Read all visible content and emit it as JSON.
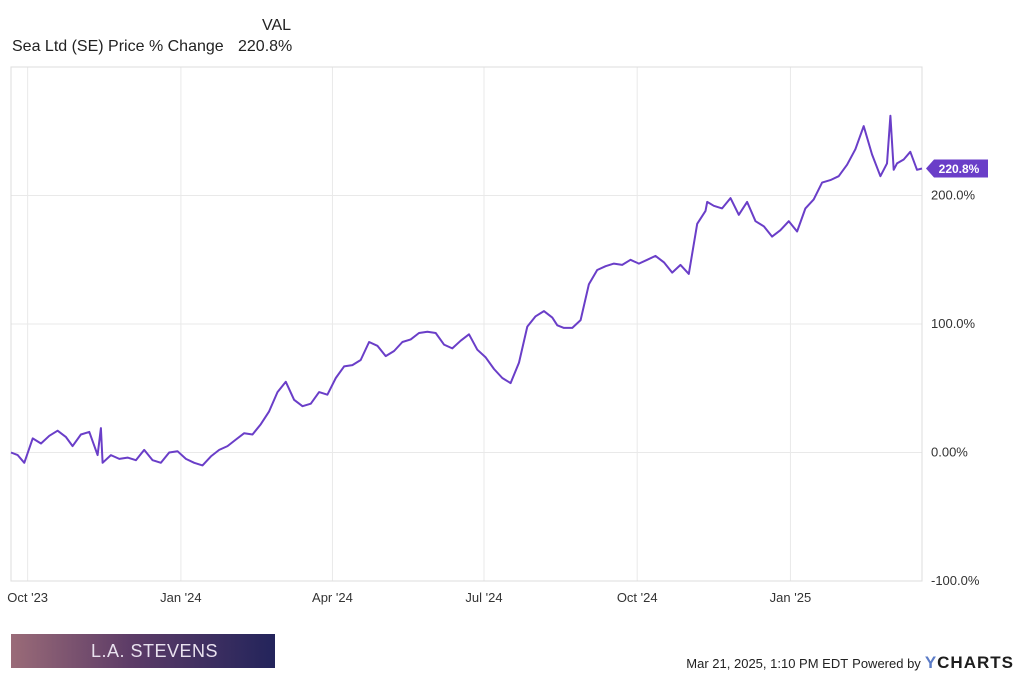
{
  "legend": {
    "header": "VAL",
    "series_label": "Sea Ltd (SE) Price % Change",
    "series_value": "220.8%"
  },
  "branding": {
    "text": "L.A. STEVENS"
  },
  "footer": {
    "timestamp": "Mar 21, 2025, 1:10 PM EDT",
    "powered_by": "Powered by",
    "logo_y": "Y",
    "logo_rest": "CHARTS"
  },
  "colors": {
    "line": "#6a3ec8",
    "grid": "#e9e9e9",
    "axis": "#cccccc"
  },
  "chart_data": {
    "type": "line",
    "series": [
      {
        "name": "Sea Ltd (SE) Price % Change",
        "x": [
          "2023-09-21",
          "2023-09-25",
          "2023-09-29",
          "2023-10-04",
          "2023-10-09",
          "2023-10-14",
          "2023-10-19",
          "2023-10-24",
          "2023-10-28",
          "2023-11-02",
          "2023-11-07",
          "2023-11-12",
          "2023-11-14",
          "2023-11-15",
          "2023-11-20",
          "2023-11-25",
          "2023-11-30",
          "2023-12-05",
          "2023-12-10",
          "2023-12-15",
          "2023-12-20",
          "2023-12-25",
          "2023-12-30",
          "2024-01-04",
          "2024-01-09",
          "2024-01-14",
          "2024-01-19",
          "2024-01-24",
          "2024-01-29",
          "2024-02-03",
          "2024-02-08",
          "2024-02-13",
          "2024-02-18",
          "2024-02-23",
          "2024-02-28",
          "2024-03-04",
          "2024-03-09",
          "2024-03-14",
          "2024-03-19",
          "2024-03-24",
          "2024-03-29",
          "2024-04-03",
          "2024-04-08",
          "2024-04-13",
          "2024-04-18",
          "2024-04-23",
          "2024-04-28",
          "2024-05-03",
          "2024-05-08",
          "2024-05-13",
          "2024-05-18",
          "2024-05-23",
          "2024-05-28",
          "2024-06-02",
          "2024-06-07",
          "2024-06-12",
          "2024-06-17",
          "2024-06-22",
          "2024-06-27",
          "2024-07-02",
          "2024-07-07",
          "2024-07-12",
          "2024-07-17",
          "2024-07-22",
          "2024-07-27",
          "2024-08-01",
          "2024-08-06",
          "2024-08-11",
          "2024-08-14",
          "2024-08-18",
          "2024-08-23",
          "2024-08-28",
          "2024-09-02",
          "2024-09-07",
          "2024-09-12",
          "2024-09-17",
          "2024-09-22",
          "2024-09-27",
          "2024-10-02",
          "2024-10-07",
          "2024-10-12",
          "2024-10-17",
          "2024-10-22",
          "2024-10-27",
          "2024-11-01",
          "2024-11-06",
          "2024-11-11",
          "2024-11-12",
          "2024-11-16",
          "2024-11-21",
          "2024-11-26",
          "2024-12-01",
          "2024-12-06",
          "2024-12-11",
          "2024-12-16",
          "2024-12-21",
          "2024-12-26",
          "2024-12-31",
          "2025-01-05",
          "2025-01-10",
          "2025-01-15",
          "2025-01-20",
          "2025-01-25",
          "2025-01-30",
          "2025-02-04",
          "2025-02-09",
          "2025-02-14",
          "2025-02-19",
          "2025-02-24",
          "2025-02-28",
          "2025-03-02",
          "2025-03-04",
          "2025-03-06",
          "2025-03-10",
          "2025-03-14",
          "2025-03-18",
          "2025-03-21"
        ],
        "values": [
          0,
          -2,
          -8,
          11,
          7,
          13,
          17,
          12,
          5,
          14,
          16,
          -2,
          19,
          -8,
          -2,
          -5,
          -4,
          -6,
          2,
          -6,
          -8,
          0,
          1,
          -5,
          -8,
          -10,
          -3,
          2,
          5,
          10,
          15,
          14,
          22,
          32,
          47,
          55,
          41,
          36,
          38,
          47,
          45,
          58,
          67,
          68,
          72,
          86,
          83,
          75,
          79,
          86,
          88,
          93,
          94,
          93,
          84,
          81,
          87,
          92,
          80,
          74,
          65,
          58,
          54,
          70,
          98,
          106,
          110,
          105,
          99,
          97,
          97,
          103,
          131,
          142,
          145,
          147,
          146,
          150,
          147,
          150,
          153,
          148,
          140,
          146,
          139,
          178,
          188,
          195,
          192,
          190,
          198,
          185,
          195,
          180,
          176,
          168,
          173,
          180,
          172,
          190,
          197,
          210,
          212,
          215,
          224,
          236,
          254,
          232,
          215,
          225,
          262,
          220,
          225,
          228,
          234,
          220,
          221
        ]
      }
    ],
    "x_ticks": [
      "Oct '23",
      "Jan '24",
      "Apr '24",
      "Jul '24",
      "Oct '24",
      "Jan '25"
    ],
    "y_ticks": [
      "-100.0%",
      "0.00%",
      "100.0%",
      "200.0%"
    ],
    "end_label": "220.8%",
    "ylim": [
      -100,
      300
    ],
    "xlim": [
      "2023-09-21",
      "2025-03-21"
    ],
    "grid": true,
    "y_axis_side": "right",
    "legend_placement": "top-left"
  }
}
